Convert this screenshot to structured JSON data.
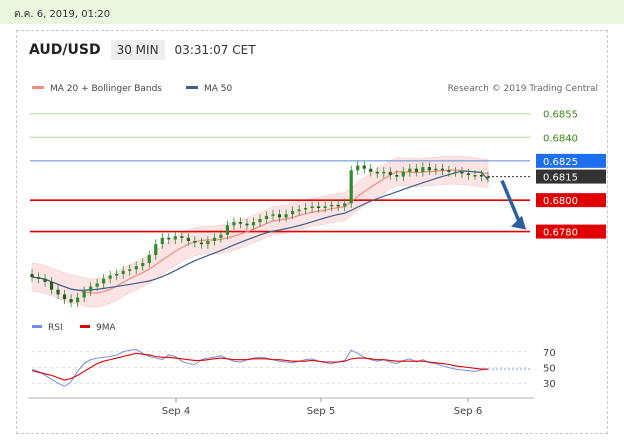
{
  "top_bar": {
    "date_time": "ต.ค. 6, 2019, 01:20"
  },
  "header": {
    "symbol": "AUD/USD",
    "timeframe": "30 MIN",
    "time": "03:31:07 CET"
  },
  "colors": {
    "ma20": "#f28b82",
    "bollinger_fill": "#fbdcdc",
    "ma50": "#3b5f91",
    "resistance_line": "#b5d99c",
    "current_price_line": "#5b8bd6",
    "support_line": "#e00000",
    "current_label_bg": "#333333",
    "resistance_label_bg": "#1e6ff0",
    "support_label_bg": "#e00000",
    "candle": "#2e8b2e",
    "arrow": "#2b5f9e",
    "rsi": "#6f8fe0",
    "rsi_ma": "#e00000"
  },
  "chart_data": [
    {
      "type": "candlestick",
      "legend": {
        "items": [
          "MA 20 + Bollinger Bands",
          "MA 50"
        ],
        "placement": "top-left"
      },
      "credit": "Research © 2019 Trading Central",
      "ylim": [
        0.6725,
        0.6865
      ],
      "x_ticks": [
        "Sep 4",
        "Sep 5",
        "Sep 6"
      ],
      "levels": [
        {
          "value": 0.6855,
          "label": "0.6855",
          "kind": "resistance"
        },
        {
          "value": 0.684,
          "label": "0.6840",
          "kind": "resistance"
        },
        {
          "value": 0.6825,
          "label": "0.6825",
          "kind": "resistance_highlight"
        },
        {
          "value": 0.6815,
          "label": "0.6815",
          "kind": "current"
        },
        {
          "value": 0.68,
          "label": "0.6800",
          "kind": "support"
        },
        {
          "value": 0.678,
          "label": "0.6780",
          "kind": "support"
        }
      ],
      "close": [
        0.6751,
        0.675,
        0.6748,
        0.6743,
        0.674,
        0.6737,
        0.6735,
        0.6738,
        0.6742,
        0.6745,
        0.6747,
        0.675,
        0.6752,
        0.6753,
        0.6755,
        0.6756,
        0.6758,
        0.676,
        0.6765,
        0.6772,
        0.6776,
        0.6775,
        0.6777,
        0.6776,
        0.6774,
        0.6773,
        0.6772,
        0.6774,
        0.6776,
        0.6778,
        0.6784,
        0.6786,
        0.6785,
        0.6784,
        0.6786,
        0.6788,
        0.679,
        0.6791,
        0.6789,
        0.6791,
        0.6793,
        0.6794,
        0.6795,
        0.6796,
        0.6795,
        0.6796,
        0.6797,
        0.6796,
        0.6798,
        0.6819,
        0.6822,
        0.682,
        0.6818,
        0.6817,
        0.6818,
        0.6816,
        0.6815,
        0.6818,
        0.682,
        0.6818,
        0.6821,
        0.6819,
        0.682,
        0.6819,
        0.6818,
        0.6818,
        0.6817,
        0.6816,
        0.6816,
        0.6815,
        0.6814
      ],
      "ma20_end": 0.6817,
      "ma50_end": 0.6813,
      "forecast": {
        "from": 0.6815,
        "to": 0.678,
        "direction": "down"
      }
    },
    {
      "type": "line",
      "legend": {
        "items": [
          "RSI",
          "9MA"
        ],
        "placement": "top-left"
      },
      "y_ticks": [
        70,
        50,
        30
      ],
      "ylim": [
        15,
        85
      ],
      "rsi": [
        48,
        45,
        40,
        35,
        30,
        26,
        32,
        45,
        55,
        60,
        62,
        63,
        64,
        66,
        70,
        72,
        73,
        68,
        64,
        62,
        60,
        66,
        64,
        58,
        55,
        54,
        60,
        62,
        63,
        65,
        61,
        58,
        57,
        60,
        62,
        63,
        62,
        60,
        58,
        57,
        56,
        58,
        60,
        61,
        58,
        56,
        55,
        57,
        59,
        72,
        68,
        63,
        60,
        58,
        60,
        57,
        55,
        59,
        61,
        57,
        60,
        56,
        55,
        52,
        50,
        48,
        47,
        46,
        45,
        47,
        48
      ],
      "rsi_ma": [
        46,
        44,
        42,
        40,
        37,
        34,
        36,
        40,
        45,
        50,
        55,
        58,
        60,
        62,
        64,
        66,
        68,
        67,
        66,
        64,
        63,
        63,
        62,
        61,
        60,
        59,
        59,
        60,
        61,
        62,
        61,
        60,
        60,
        60,
        61,
        61,
        61,
        60,
        60,
        59,
        58,
        58,
        58,
        59,
        58,
        57,
        57,
        57,
        58,
        61,
        62,
        62,
        61,
        60,
        60,
        59,
        58,
        58,
        58,
        58,
        58,
        57,
        56,
        55,
        54,
        52,
        51,
        50,
        49,
        48,
        48
      ]
    }
  ]
}
